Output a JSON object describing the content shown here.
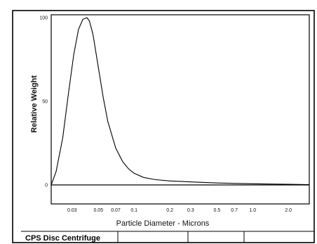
{
  "chart_data": {
    "type": "line",
    "xlabel": "Particle Diameter  -  Microns",
    "ylabel": "Relative Weight",
    "x_scale": "log",
    "x_ticks": [
      {
        "value": 0.03,
        "label": "0.03"
      },
      {
        "value": 0.05,
        "label": "0.05"
      },
      {
        "value": 0.07,
        "label": "0.07"
      },
      {
        "value": 0.1,
        "label": "0.1"
      },
      {
        "value": 0.2,
        "label": "0.2"
      },
      {
        "value": 0.3,
        "label": "0.3"
      },
      {
        "value": 0.5,
        "label": "0.5"
      },
      {
        "value": 0.7,
        "label": "0.7"
      },
      {
        "value": 1.0,
        "label": "1.0"
      },
      {
        "value": 2.0,
        "label": "2.0"
      }
    ],
    "y_ticks": [
      {
        "value": 0,
        "label": "0"
      },
      {
        "value": 50,
        "label": "50"
      },
      {
        "value": 100,
        "label": "100"
      }
    ],
    "xlim": [
      0.02,
      3.0
    ],
    "ylim": [
      0,
      100
    ],
    "grid": false,
    "series": [
      {
        "x": [
          0.02,
          0.022,
          0.025,
          0.028,
          0.031,
          0.034,
          0.037,
          0.04,
          0.042,
          0.045,
          0.05,
          0.055,
          0.06,
          0.07,
          0.08,
          0.09,
          0.1,
          0.12,
          0.15,
          0.2,
          0.3,
          0.5,
          0.7,
          1.0,
          1.5,
          2.0,
          3.0
        ],
        "y": [
          0,
          8,
          28,
          55,
          78,
          93,
          99,
          100,
          98,
          90,
          70,
          52,
          38,
          22,
          14,
          9.5,
          7,
          4.5,
          3.2,
          2.4,
          1.8,
          1.2,
          0.9,
          0.7,
          0.5,
          0.4,
          0.2
        ]
      }
    ]
  },
  "footer": {
    "label": "CPS Disc Centrifuge"
  }
}
